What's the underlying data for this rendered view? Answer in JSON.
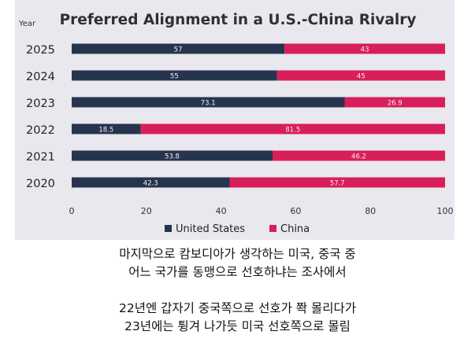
{
  "chart_data": {
    "type": "bar",
    "orientation": "horizontal",
    "stacked": true,
    "title": "Preferred Alignment in a U.S.-China Rivalry",
    "ylabel": "Year",
    "categories": [
      "2025",
      "2024",
      "2023",
      "2022",
      "2021",
      "2020"
    ],
    "series": [
      {
        "name": "United States",
        "color": "#27344d",
        "values": [
          57,
          55,
          73.1,
          18.5,
          53.8,
          42.3
        ],
        "labels": [
          "57",
          "55",
          "73.1",
          "18.5",
          "53.8",
          "42.3"
        ]
      },
      {
        "name": "China",
        "color": "#d81e5b",
        "values": [
          43,
          45,
          26.9,
          81.5,
          46.2,
          57.7
        ],
        "labels": [
          "43",
          "45",
          "26.9",
          "81.5",
          "46.2",
          "57.7"
        ]
      }
    ],
    "xlim": [
      0,
      100
    ],
    "xticks": [
      "0",
      "20",
      "40",
      "60",
      "80",
      "100"
    ],
    "legend_position": "bottom"
  },
  "caption": {
    "line1": "마지막으로 캄보디아가 생각하는 미국, 중국 중",
    "line2": "어느 국가를 동맹으로 선호하냐는 조사에서",
    "line3": "22년엔 갑자기 중국쪽으로 선호가 쫙 몰리다가",
    "line4": "23년에는 튕겨 나가듯 미국 선호쪽으로 몰림"
  }
}
